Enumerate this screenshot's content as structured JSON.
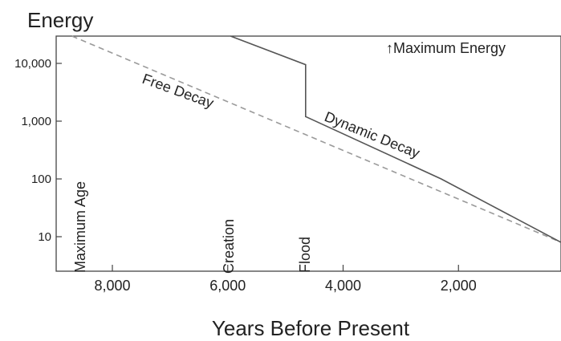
{
  "chart_data": {
    "type": "line",
    "ylabel": "Energy",
    "xlabel": "Years Before Present",
    "y_scale": "log",
    "x_reversed": true,
    "xlim": [
      8000,
      0
    ],
    "ylim": [
      1,
      30000
    ],
    "x_ticks": [
      8000,
      6000,
      4000,
      2000
    ],
    "x_tick_labels": [
      "8,000",
      "6,000",
      "4,000",
      "2,000"
    ],
    "y_ticks": [
      10,
      100,
      1000,
      10000
    ],
    "y_tick_labels": [
      "10",
      "100",
      "1,000",
      "10,000"
    ],
    "series": [
      {
        "name": "Free Decay",
        "style": "dashed",
        "color": "#9a9a9a",
        "x": [
          8700,
          0
        ],
        "y": [
          30000,
          8
        ]
      },
      {
        "name": "Dynamic Decay",
        "style": "solid",
        "color": "#555555",
        "x": [
          5950,
          4650,
          4650,
          2300,
          0
        ],
        "y": [
          30000,
          9500,
          1200,
          100,
          8
        ]
      }
    ],
    "annotations": [
      {
        "text": "Maximum Age",
        "x": 8650
      },
      {
        "text": "Creation",
        "x": 6000
      },
      {
        "text": "Flood",
        "x": 4700
      }
    ],
    "legend_note": {
      "arrow": "↑",
      "text": "Maximum Energy"
    }
  }
}
